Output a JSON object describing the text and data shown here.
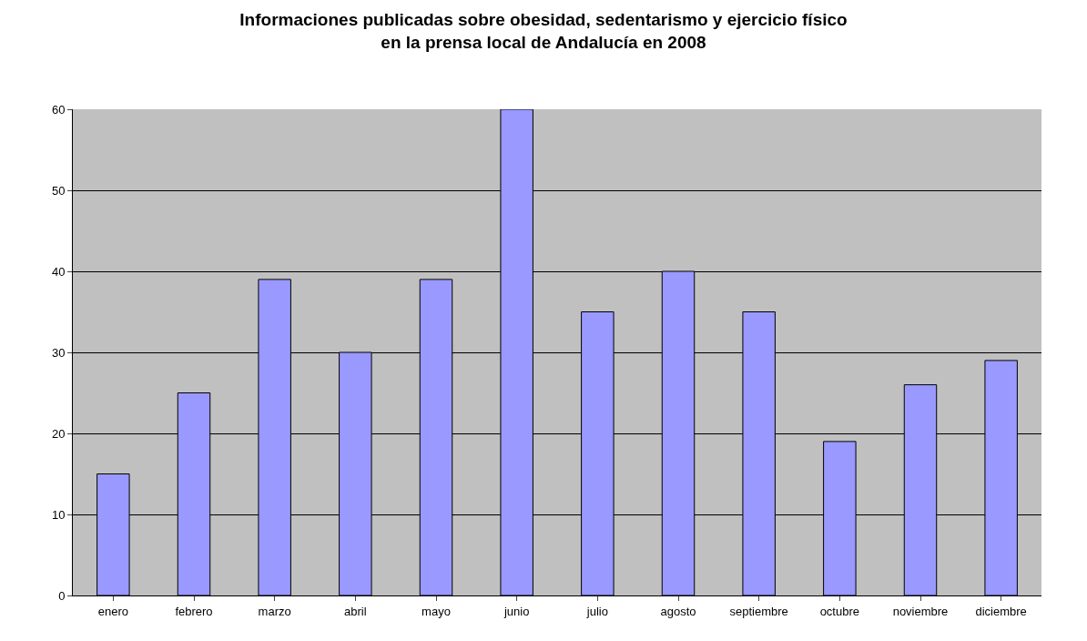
{
  "chart_data": {
    "type": "bar",
    "title": "Informaciones publicadas sobre obesidad, sedentarismo y ejercicio físico\nen la prensa local de Andalucía en 2008",
    "categories": [
      "enero",
      "febrero",
      "marzo",
      "abril",
      "mayo",
      "junio",
      "julio",
      "agosto",
      "septiembre",
      "octubre",
      "noviembre",
      "diciembre"
    ],
    "values": [
      15,
      25,
      39,
      30,
      39,
      60,
      35,
      40,
      35,
      19,
      26,
      29
    ],
    "color": "#9999ff",
    "ylim": [
      0,
      60
    ],
    "yticks": [
      0,
      10,
      20,
      30,
      40,
      50,
      60
    ],
    "grid": "y",
    "legend": false
  }
}
